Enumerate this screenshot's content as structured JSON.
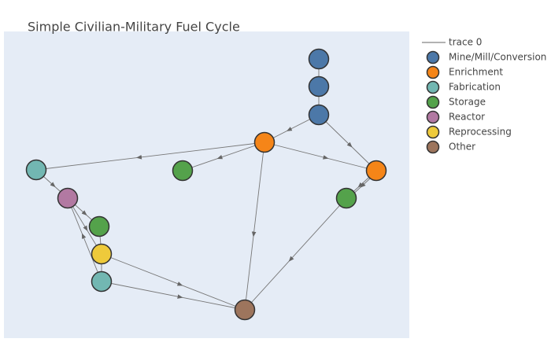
{
  "title": "Simple Civilian-Military Fuel Cycle",
  "legend": {
    "line_entry": "trace 0",
    "entries": [
      {
        "label": "Mine/Mill/Conversion",
        "color": "#4c78a8"
      },
      {
        "label": "Enrichment",
        "color": "#f58518"
      },
      {
        "label": "Fabrication",
        "color": "#72b7b2"
      },
      {
        "label": "Storage",
        "color": "#54a24b"
      },
      {
        "label": "Reactor",
        "color": "#b279a2"
      },
      {
        "label": "Reprocessing",
        "color": "#eeca3b"
      },
      {
        "label": "Other",
        "color": "#9d755d"
      }
    ]
  }
}
